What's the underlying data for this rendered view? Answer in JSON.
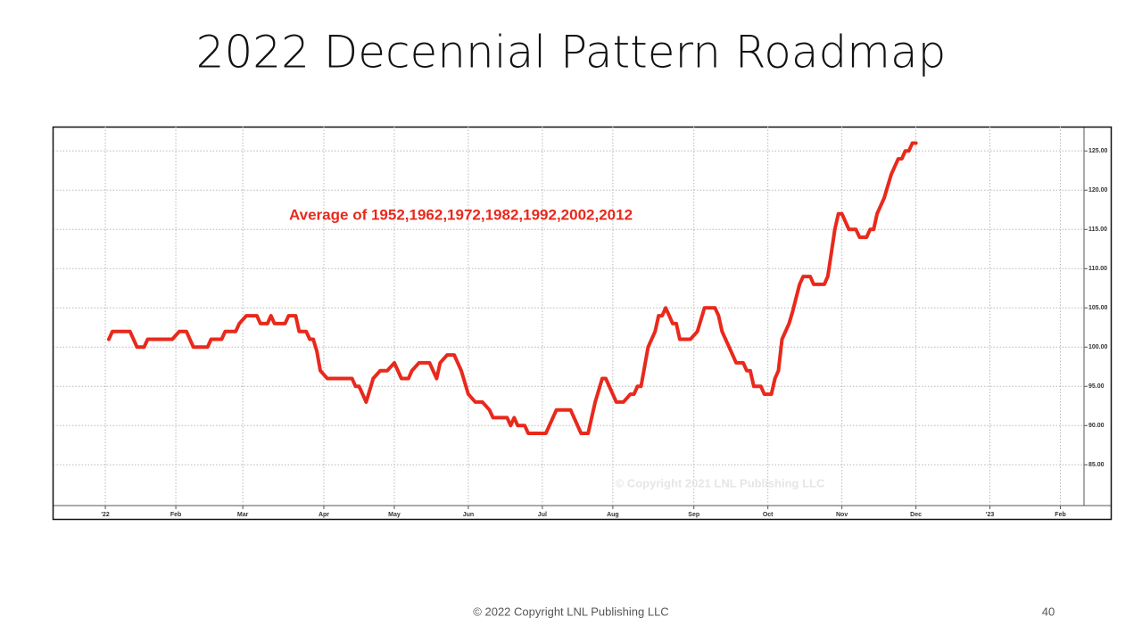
{
  "slide": {
    "title": "2022 Decennial Pattern Roadmap",
    "footer": "© 2022 Copyright LNL Publishing LLC",
    "page_number": "40"
  },
  "chart_data": {
    "type": "line",
    "annotation": "Average of 1952,1962,1972,1982,1992,2002,2012",
    "watermark": "© Copyright 2021 LNL Publishing LLC",
    "color": "#e8291c",
    "grid": true,
    "xlim": [
      -14.7,
      277.7
    ],
    "ylim": [
      79.8,
      128.1
    ],
    "xticks": [
      {
        "value": 0,
        "label": "'22"
      },
      {
        "value": 20,
        "label": "Feb"
      },
      {
        "value": 39,
        "label": "Mar"
      },
      {
        "value": 62,
        "label": "Apr"
      },
      {
        "value": 82,
        "label": "May"
      },
      {
        "value": 103,
        "label": "Jun"
      },
      {
        "value": 124,
        "label": "Jul"
      },
      {
        "value": 144,
        "label": "Aug"
      },
      {
        "value": 167,
        "label": "Sep"
      },
      {
        "value": 188,
        "label": "Oct"
      },
      {
        "value": 209,
        "label": "Nov"
      },
      {
        "value": 230,
        "label": "Dec"
      },
      {
        "value": 251,
        "label": "'23"
      },
      {
        "value": 271,
        "label": "Feb"
      }
    ],
    "yticks": [
      {
        "value": 85,
        "label": "85.00"
      },
      {
        "value": 90,
        "label": "90.00"
      },
      {
        "value": 95,
        "label": "95.00"
      },
      {
        "value": 100,
        "label": "100.00"
      },
      {
        "value": 105,
        "label": "105.00"
      },
      {
        "value": 110,
        "label": "110.00"
      },
      {
        "value": 115,
        "label": "115.00"
      },
      {
        "value": 120,
        "label": "120.00"
      },
      {
        "value": 125,
        "label": "125.00"
      }
    ],
    "x": [
      1,
      2,
      7,
      9,
      11,
      12,
      19,
      21,
      23,
      25,
      29,
      30,
      33,
      34,
      37,
      38,
      40,
      43,
      44,
      46,
      47,
      48,
      51,
      52,
      54,
      55,
      57,
      58,
      59,
      60,
      61,
      63,
      64,
      70,
      71,
      72,
      74,
      76,
      78,
      80,
      82,
      84,
      86,
      87,
      89,
      92,
      94,
      95,
      97,
      99,
      101,
      103,
      105,
      107,
      109,
      110,
      114,
      115,
      116,
      117,
      119,
      120,
      125,
      126,
      127,
      128,
      132,
      135,
      137,
      139,
      141,
      142,
      145,
      147,
      149,
      150,
      151,
      152,
      154,
      156,
      157,
      158,
      159,
      160,
      161,
      162,
      163,
      166,
      168,
      170,
      173,
      174,
      175,
      178,
      179,
      181,
      182,
      183,
      184,
      186,
      187,
      189,
      190,
      191,
      192,
      194,
      195,
      197,
      198,
      200,
      201,
      204,
      205,
      206,
      207,
      208,
      209,
      211,
      213,
      214,
      216,
      217,
      218,
      219,
      221,
      223,
      225,
      226,
      227,
      228,
      229,
      230
    ],
    "values": [
      101,
      102,
      102,
      100,
      100,
      101,
      101,
      102,
      102,
      100,
      100,
      101,
      101,
      102,
      102,
      103,
      104,
      104,
      103,
      103,
      104,
      103,
      103,
      104,
      104,
      102,
      102,
      101,
      101,
      99.5,
      97,
      96,
      96,
      96,
      95,
      95,
      93,
      96,
      97,
      97,
      98,
      96,
      96,
      97,
      98,
      98,
      96,
      98,
      99,
      99,
      97,
      94,
      93,
      93,
      92,
      91,
      91,
      90,
      91,
      90,
      90,
      89,
      89,
      90,
      91,
      92,
      92,
      89,
      89,
      93,
      96,
      96,
      93,
      93,
      94,
      94,
      95,
      95,
      100,
      102,
      104,
      104,
      105,
      104,
      103,
      103,
      101,
      101,
      102,
      105,
      105,
      104,
      102,
      99,
      98,
      98,
      97,
      97,
      95,
      95,
      94,
      94,
      96,
      97,
      101,
      103,
      104.5,
      108,
      109,
      109,
      108,
      108,
      109,
      112,
      115,
      117,
      117,
      115,
      115,
      114,
      114,
      115,
      115,
      117,
      119,
      122,
      124,
      124,
      125,
      125,
      126,
      126
    ]
  }
}
